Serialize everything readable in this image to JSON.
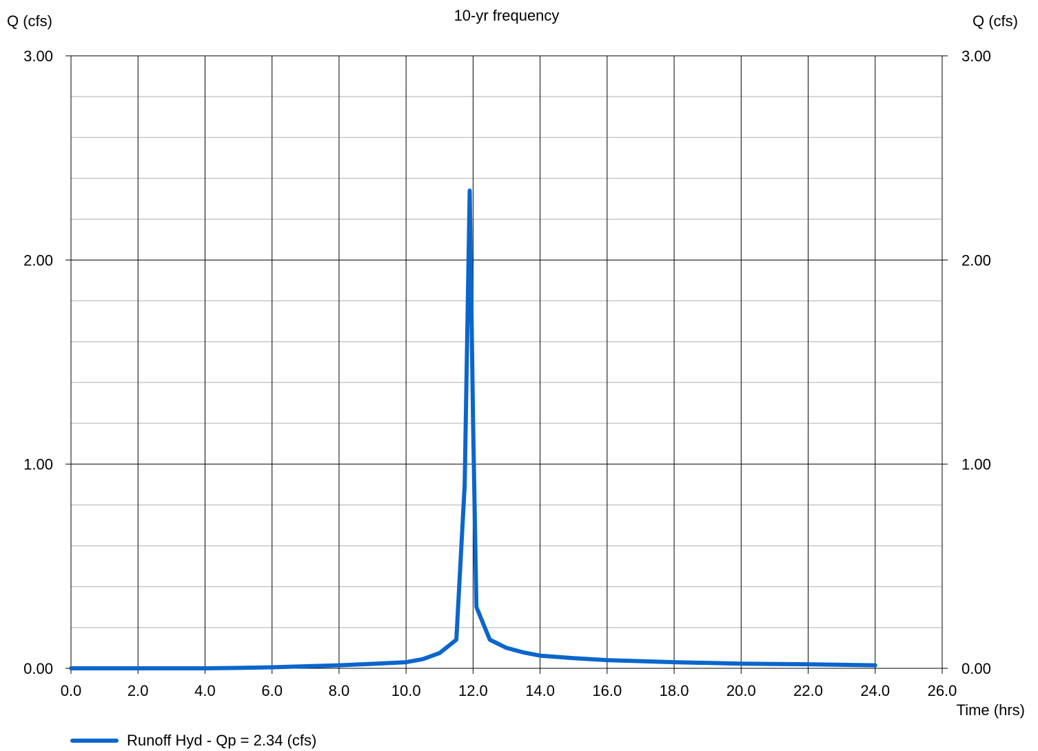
{
  "chart_data": {
    "type": "line",
    "title": "10-yr frequency",
    "ylabel_left": "Q (cfs)",
    "ylabel_right": "Q (cfs)",
    "xlabel": "Time (hrs)",
    "xlim": [
      0,
      26
    ],
    "ylim": [
      0,
      3
    ],
    "x_ticks": [
      "0.0",
      "2.0",
      "4.0",
      "6.0",
      "8.0",
      "10.0",
      "12.0",
      "14.0",
      "16.0",
      "18.0",
      "20.0",
      "22.0",
      "24.0",
      "26.0"
    ],
    "y_ticks": [
      "0.00",
      "1.00",
      "2.00",
      "3.00"
    ],
    "grid": true,
    "legend_position": "bottom-left",
    "series": [
      {
        "name": "Runoff Hyd - Qp = 2.34 (cfs)",
        "color": "#0b66cc",
        "x": [
          0,
          2,
          4,
          5,
          6,
          7,
          8,
          9,
          10,
          10.5,
          11,
          11.5,
          11.75,
          11.9,
          12.0,
          12.1,
          12.5,
          13.0,
          13.5,
          14,
          15,
          16,
          18,
          20,
          22,
          24
        ],
        "y": [
          0,
          0,
          0,
          0.002,
          0.005,
          0.01,
          0.015,
          0.022,
          0.03,
          0.045,
          0.075,
          0.14,
          0.9,
          2.34,
          1.2,
          0.3,
          0.14,
          0.1,
          0.078,
          0.062,
          0.05,
          0.04,
          0.03,
          0.023,
          0.02,
          0.015
        ]
      }
    ]
  }
}
